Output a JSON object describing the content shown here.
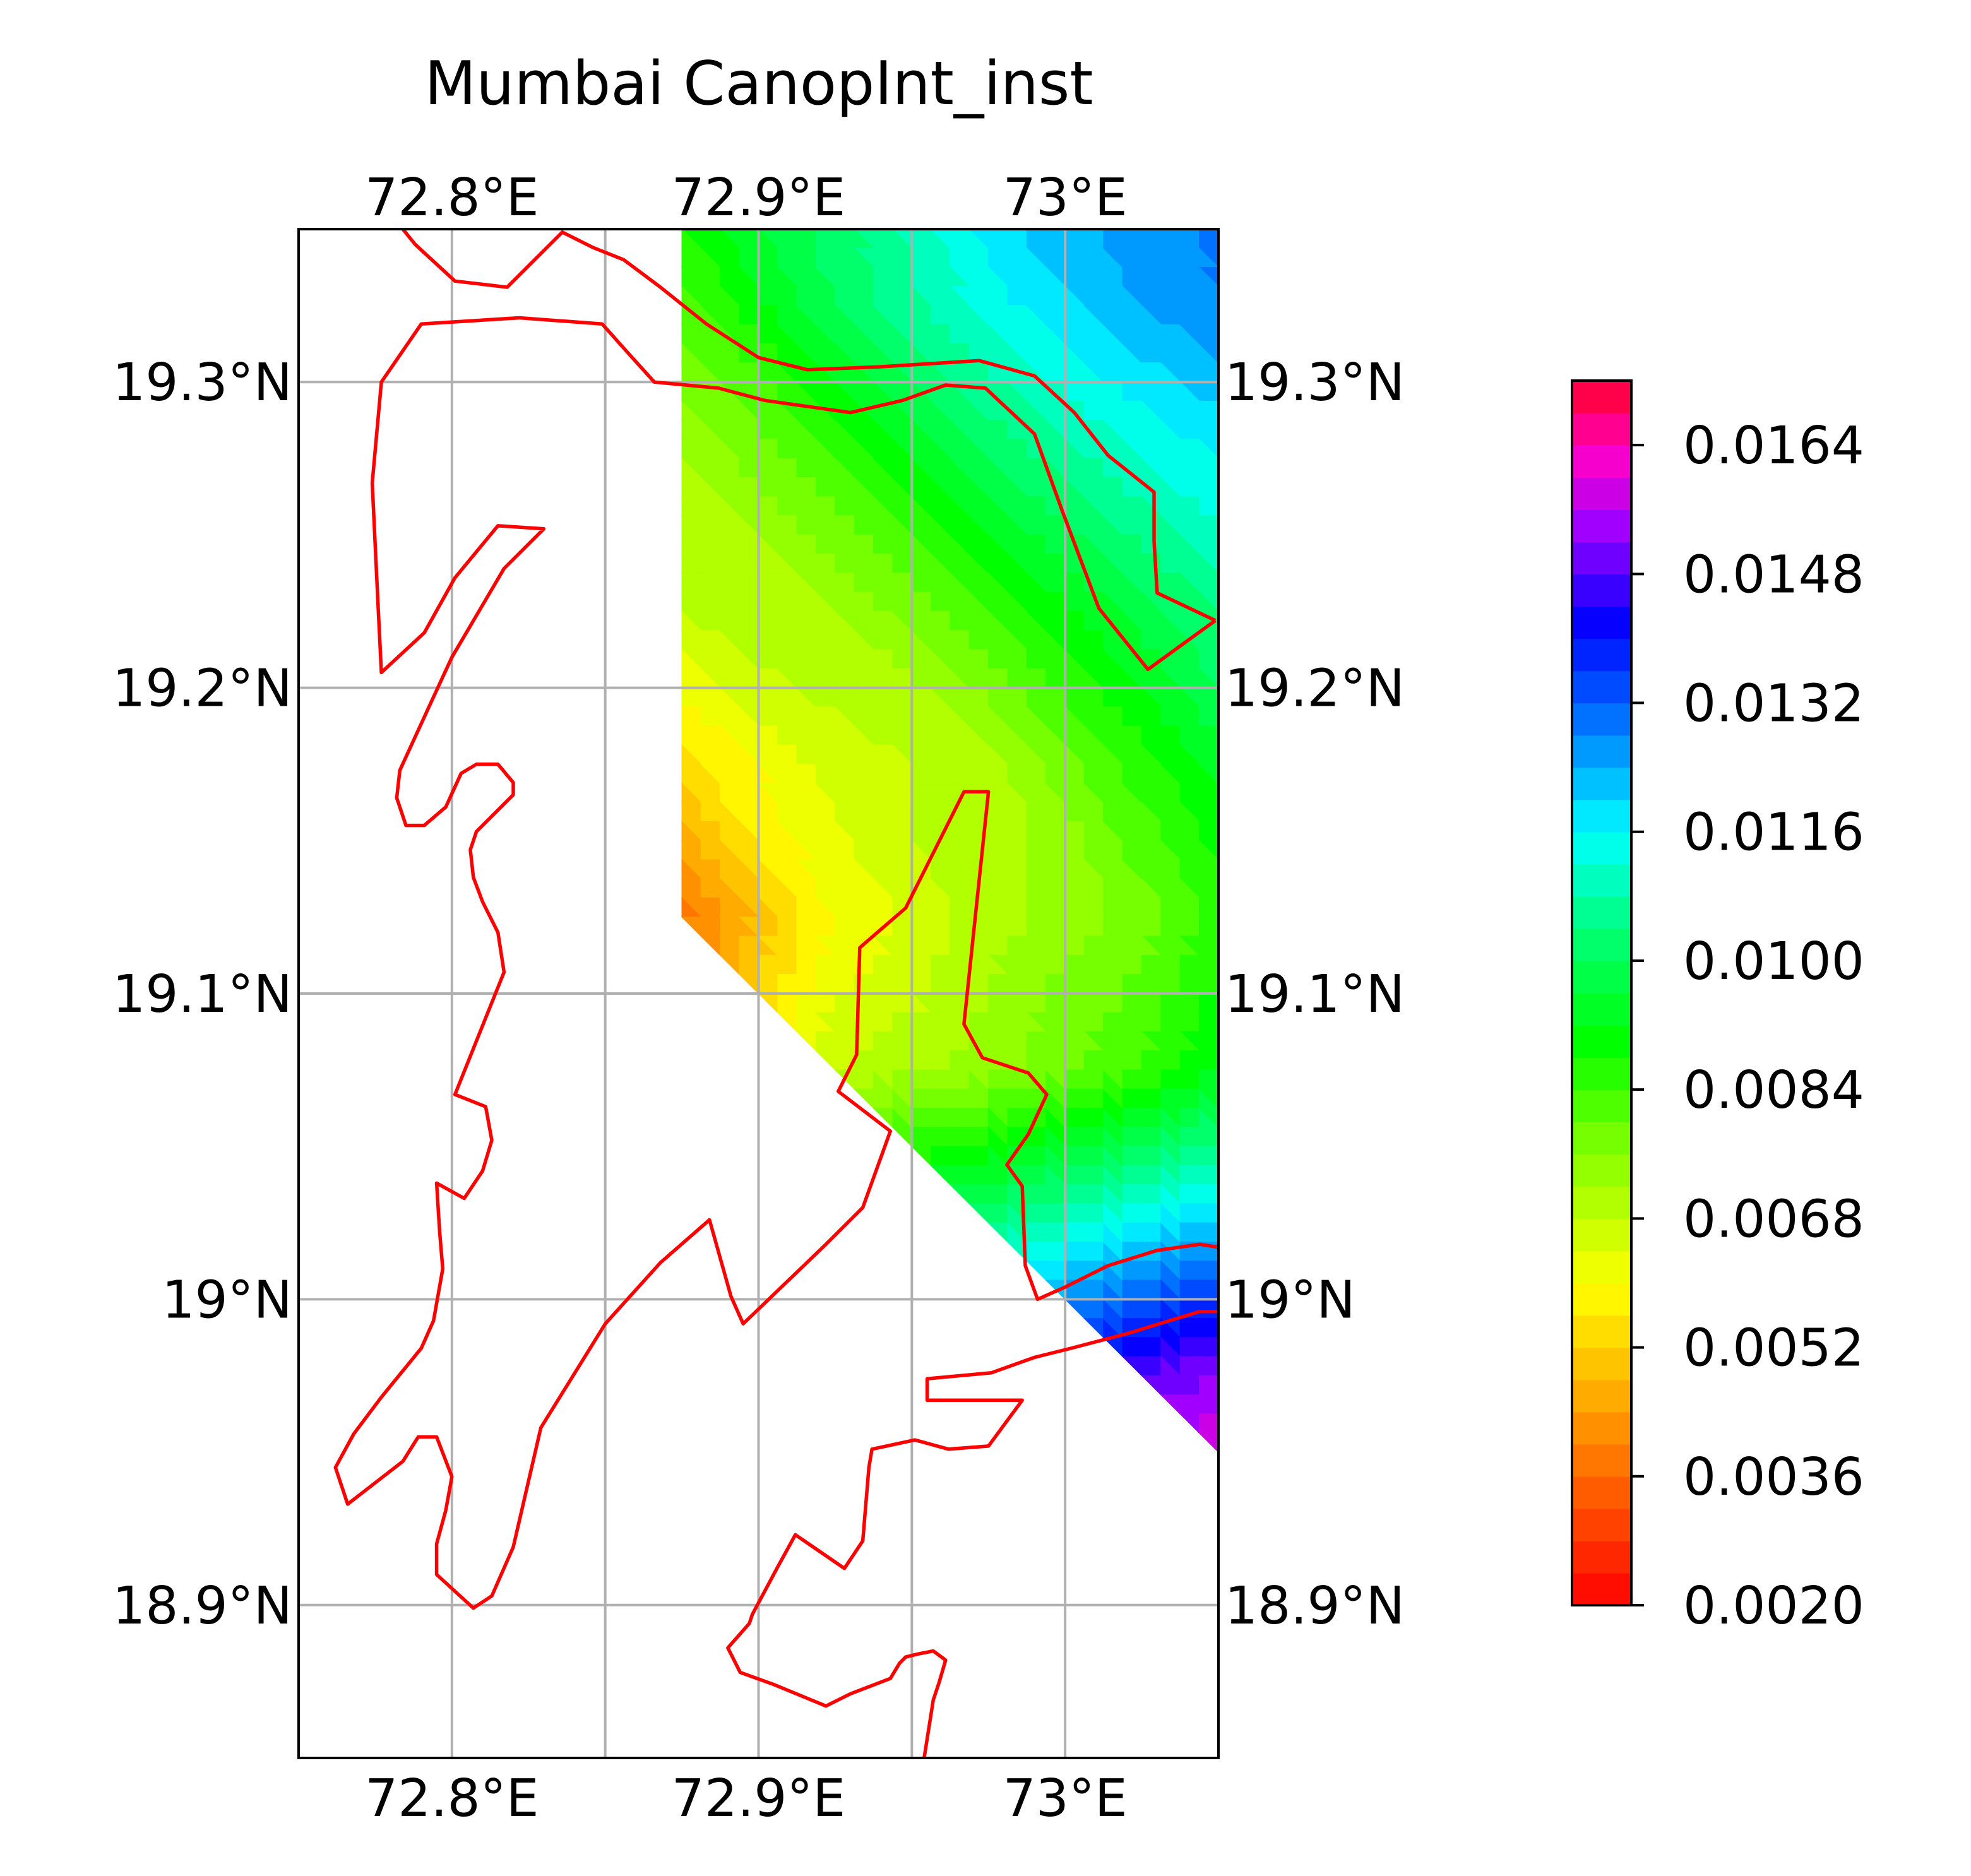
{
  "chart_data": {
    "type": "map-contour",
    "title": "Mumbai CanopInt_inst",
    "x_ticks": [
      {
        "value": 72.8,
        "label": "72.8°E"
      },
      {
        "value": 72.9,
        "label": "72.9°E"
      },
      {
        "value": 73.0,
        "label": "73°E"
      }
    ],
    "y_ticks": [
      {
        "value": 19.3,
        "label": "19.3°N"
      },
      {
        "value": 19.2,
        "label": "19.2°N"
      },
      {
        "value": 19.1,
        "label": "19.1°N"
      },
      {
        "value": 19.0,
        "label": "19°N"
      },
      {
        "value": 18.9,
        "label": "18.9°N"
      }
    ],
    "lon_range": [
      72.75,
      73.05
    ],
    "lat_range": [
      18.85,
      19.35
    ],
    "grid": true,
    "gridline_lons": [
      72.75,
      72.8,
      72.85,
      72.9,
      72.95,
      73.0
    ],
    "gridline_lats": [
      18.9,
      19.0,
      19.1,
      19.2,
      19.3
    ],
    "colorbar": {
      "colormap": "gist_rainbow_r",
      "range": [
        0.002,
        0.0172
      ],
      "tick_values": [
        0.002,
        0.0036,
        0.0052,
        0.0068,
        0.0084,
        0.01,
        0.0116,
        0.0132,
        0.0148,
        0.0164
      ],
      "tick_labels": [
        "0.0020",
        "0.0036",
        "0.0052",
        "0.0068",
        "0.0084",
        "0.0100",
        "0.0116",
        "0.0132",
        "0.0148",
        "0.0164"
      ],
      "levels": 38
    },
    "field": {
      "lons": [
        72.875,
        72.925,
        72.975,
        73.025,
        73.075
      ],
      "lats": [
        19.375,
        19.325,
        19.275,
        19.225,
        19.175,
        19.125,
        19.075,
        19.025,
        18.975,
        18.925
      ],
      "values": [
        [
          0.0092,
          0.0104,
          0.0122,
          0.0126,
          0.0138
        ],
        [
          0.0082,
          0.01,
          0.0114,
          0.0124,
          0.0132
        ],
        [
          0.0072,
          0.0084,
          0.01,
          0.0112,
          0.012
        ],
        [
          0.0068,
          0.0072,
          0.0084,
          0.0098,
          0.011
        ],
        [
          0.0054,
          0.0066,
          0.007,
          0.0086,
          0.0102
        ],
        [
          0.0038,
          0.006,
          0.007,
          0.0078,
          0.0092
        ],
        [
          null,
          0.0068,
          0.0074,
          0.0084,
          0.01
        ],
        [
          null,
          null,
          0.0104,
          0.0116,
          0.0128
        ],
        [
          null,
          null,
          null,
          0.0148,
          0.0158
        ],
        [
          null,
          null,
          null,
          null,
          0.017
        ]
      ]
    },
    "coastlines": [
      [
        [
          72.784,
          19.35
        ],
        [
          72.788,
          19.345
        ],
        [
          72.801,
          19.333
        ],
        [
          72.818,
          19.331
        ],
        [
          72.836,
          19.349
        ],
        [
          72.846,
          19.344
        ],
        [
          72.856,
          19.34
        ],
        [
          72.868,
          19.331
        ],
        [
          72.883,
          19.319
        ],
        [
          72.9,
          19.308
        ],
        [
          72.916,
          19.304
        ],
        [
          72.94,
          19.305
        ],
        [
          72.972,
          19.307
        ],
        [
          72.99,
          19.302
        ],
        [
          73.003,
          19.29
        ],
        [
          73.014,
          19.276
        ],
        [
          73.029,
          19.264
        ],
        [
          73.029,
          19.248
        ],
        [
          73.03,
          19.231
        ],
        [
          73.049,
          19.222
        ]
      ],
      [
        [
          73.049,
          19.222
        ],
        [
          73.027,
          19.206
        ],
        [
          73.011,
          19.226
        ],
        [
          72.999,
          19.258
        ],
        [
          72.99,
          19.283
        ],
        [
          72.974,
          19.298
        ],
        [
          72.961,
          19.299
        ],
        [
          72.947,
          19.294
        ],
        [
          72.93,
          19.29
        ],
        [
          72.902,
          19.294
        ],
        [
          72.887,
          19.298
        ],
        [
          72.866,
          19.3
        ],
        [
          72.857,
          19.31
        ],
        [
          72.849,
          19.319
        ],
        [
          72.822,
          19.321
        ],
        [
          72.79,
          19.319
        ],
        [
          72.777,
          19.3
        ],
        [
          72.774,
          19.267
        ],
        [
          72.776,
          19.225
        ],
        [
          72.777,
          19.205
        ],
        [
          72.791,
          19.218
        ],
        [
          72.801,
          19.236
        ],
        [
          72.815,
          19.253
        ],
        [
          72.83,
          19.252
        ],
        [
          72.817,
          19.239
        ],
        [
          72.8,
          19.21
        ],
        [
          72.794,
          19.197
        ],
        [
          72.783,
          19.173
        ],
        [
          72.782,
          19.164
        ],
        [
          72.785,
          19.155
        ],
        [
          72.791,
          19.155
        ],
        [
          72.798,
          19.161
        ],
        [
          72.803,
          19.172
        ],
        [
          72.808,
          19.175
        ],
        [
          72.815,
          19.175
        ],
        [
          72.82,
          19.169
        ],
        [
          72.82,
          19.165
        ],
        [
          72.808,
          19.153
        ],
        [
          72.806,
          19.147
        ],
        [
          72.807,
          19.138
        ],
        [
          72.81,
          19.13
        ],
        [
          72.815,
          19.12
        ],
        [
          72.817,
          19.107
        ],
        [
          72.809,
          19.087
        ],
        [
          72.801,
          19.067
        ],
        [
          72.811,
          19.063
        ],
        [
          72.813,
          19.052
        ],
        [
          72.81,
          19.042
        ],
        [
          72.804,
          19.033
        ],
        [
          72.795,
          19.038
        ],
        [
          72.796,
          19.022
        ],
        [
          72.797,
          19.01
        ],
        [
          72.794,
          18.993
        ],
        [
          72.79,
          18.984
        ],
        [
          72.777,
          18.968
        ],
        [
          72.768,
          18.956
        ],
        [
          72.762,
          18.945
        ],
        [
          72.766,
          18.933
        ],
        [
          72.775,
          18.94
        ],
        [
          72.784,
          18.947
        ],
        [
          72.789,
          18.955
        ],
        [
          72.795,
          18.955
        ],
        [
          72.8,
          18.942
        ],
        [
          72.798,
          18.931
        ],
        [
          72.795,
          18.92
        ],
        [
          72.795,
          18.91
        ],
        [
          72.807,
          18.899
        ],
        [
          72.813,
          18.903
        ],
        [
          72.82,
          18.919
        ],
        [
          72.829,
          18.958
        ],
        [
          72.85,
          18.992
        ],
        [
          72.868,
          19.012
        ],
        [
          72.884,
          19.026
        ],
        [
          72.891,
          19.001
        ],
        [
          72.895,
          18.992
        ],
        [
          72.922,
          19.018
        ],
        [
          72.934,
          19.03
        ],
        [
          72.943,
          19.055
        ],
        [
          72.926,
          19.068
        ],
        [
          72.932,
          19.08
        ],
        [
          72.933,
          19.115
        ],
        [
          72.948,
          19.128
        ],
        [
          72.967,
          19.166
        ],
        [
          72.975,
          19.166
        ],
        [
          72.967,
          19.09
        ],
        [
          72.973,
          19.079
        ],
        [
          72.988,
          19.074
        ],
        [
          72.994,
          19.067
        ],
        [
          72.988,
          19.054
        ],
        [
          72.981,
          19.044
        ],
        [
          72.986,
          19.037
        ],
        [
          72.987,
          19.011
        ],
        [
          72.991,
          19.0
        ],
        [
          73.0,
          19.004
        ],
        [
          73.014,
          19.011
        ],
        [
          73.03,
          19.016
        ],
        [
          73.044,
          19.018
        ],
        [
          73.05,
          19.017
        ]
      ],
      [
        [
          73.05,
          18.996
        ],
        [
          73.044,
          18.996
        ],
        [
          73.034,
          18.993
        ],
        [
          73.021,
          18.989
        ],
        [
          73.002,
          18.984
        ],
        [
          72.99,
          18.981
        ],
        [
          72.976,
          18.976
        ],
        [
          72.955,
          18.974
        ],
        [
          72.955,
          18.967
        ],
        [
          72.974,
          18.967
        ],
        [
          72.986,
          18.967
        ],
        [
          72.975,
          18.952
        ],
        [
          72.962,
          18.951
        ],
        [
          72.951,
          18.954
        ],
        [
          72.937,
          18.951
        ],
        [
          72.936,
          18.945
        ],
        [
          72.934,
          18.921
        ],
        [
          72.928,
          18.912
        ],
        [
          72.912,
          18.923
        ],
        [
          72.906,
          18.912
        ],
        [
          72.898,
          18.897
        ],
        [
          72.897,
          18.894
        ],
        [
          72.89,
          18.886
        ],
        [
          72.894,
          18.878
        ],
        [
          72.905,
          18.874
        ],
        [
          72.922,
          18.867
        ],
        [
          72.93,
          18.871
        ],
        [
          72.943,
          18.876
        ],
        [
          72.946,
          18.881
        ],
        [
          72.948,
          18.883
        ],
        [
          72.952,
          18.884
        ],
        [
          72.957,
          18.885
        ],
        [
          72.961,
          18.882
        ],
        [
          72.959,
          18.875
        ],
        [
          72.957,
          18.869
        ],
        [
          72.954,
          18.85
        ]
      ]
    ]
  }
}
